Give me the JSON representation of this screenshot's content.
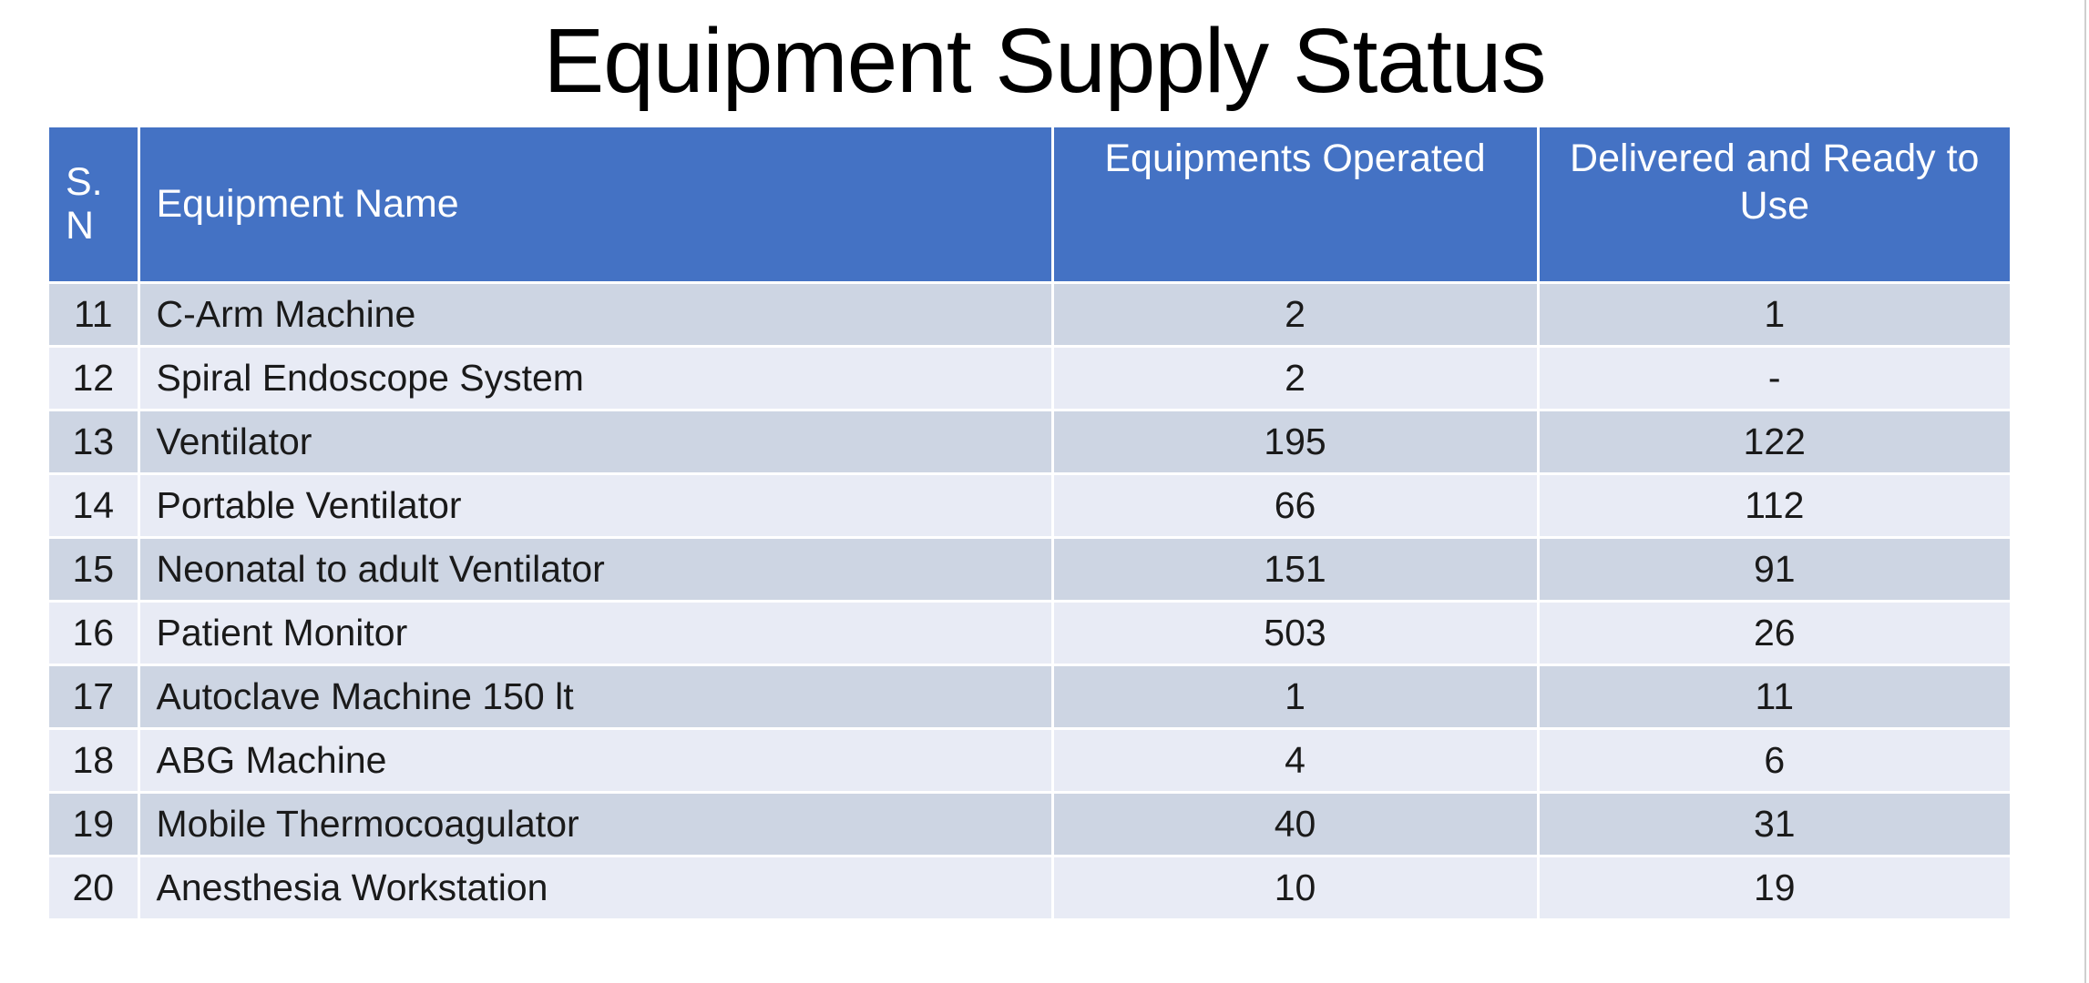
{
  "title": "Equipment Supply Status",
  "table": {
    "headers": {
      "sn_line1": "S.",
      "sn_line2": "N",
      "name": "Equipment Name",
      "operated": "Equipments Operated",
      "delivered": "Delivered and Ready to Use"
    },
    "rows": [
      {
        "sn": "11",
        "name": "C-Arm Machine",
        "operated": "2",
        "delivered": "1"
      },
      {
        "sn": "12",
        "name": "Spiral Endoscope System",
        "operated": "2",
        "delivered": "-"
      },
      {
        "sn": "13",
        "name": "Ventilator",
        "operated": "195",
        "delivered": "122"
      },
      {
        "sn": "14",
        "name": "Portable Ventilator",
        "operated": "66",
        "delivered": "112"
      },
      {
        "sn": "15",
        "name": "Neonatal to adult Ventilator",
        "operated": "151",
        "delivered": "91"
      },
      {
        "sn": "16",
        "name": "Patient Monitor",
        "operated": "503",
        "delivered": "26"
      },
      {
        "sn": "17",
        "name": "Autoclave Machine 150 lt",
        "operated": "1",
        "delivered": "11"
      },
      {
        "sn": "18",
        "name": "ABG Machine",
        "operated": "4",
        "delivered": "6"
      },
      {
        "sn": "19",
        "name": "Mobile Thermocoagulator",
        "operated": "40",
        "delivered": "31"
      },
      {
        "sn": "20",
        "name": "Anesthesia Workstation",
        "operated": "10",
        "delivered": "19"
      }
    ]
  },
  "colors": {
    "header_bg": "#4472c4",
    "row_odd_bg": "#cdd5e3",
    "row_even_bg": "#e8ebf5"
  }
}
